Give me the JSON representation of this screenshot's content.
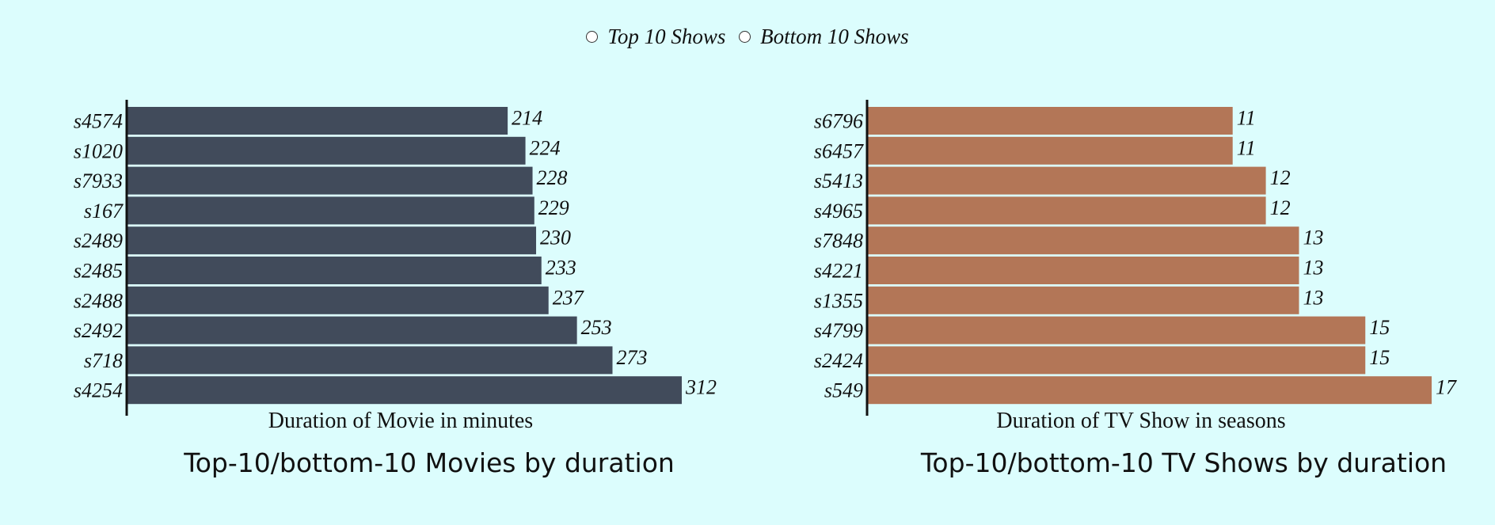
{
  "controls": {
    "top_label": "Top 10 Shows",
    "bottom_label": "Bottom 10 Shows"
  },
  "chart_data": [
    {
      "type": "bar",
      "orientation": "horizontal",
      "title": "Top-10/bottom-10 Movies by duration",
      "xlabel": "Duration of Movie in minutes",
      "ylabel": "",
      "color": "#414b5b",
      "xlim": [
        0,
        312
      ],
      "categories": [
        "s4574",
        "s1020",
        "s7933",
        "s167",
        "s2489",
        "s2485",
        "s2488",
        "s2492",
        "s718",
        "s4254"
      ],
      "values": [
        214,
        224,
        228,
        229,
        230,
        233,
        237,
        253,
        273,
        312
      ]
    },
    {
      "type": "bar",
      "orientation": "horizontal",
      "title": "Top-10/bottom-10 TV Shows by duration",
      "xlabel": "Duration of TV Show in seasons",
      "ylabel": "",
      "color": "#b37657",
      "xlim": [
        0,
        17
      ],
      "categories": [
        "s6796",
        "s6457",
        "s5413",
        "s4965",
        "s7848",
        "s4221",
        "s1355",
        "s4799",
        "s2424",
        "s549"
      ],
      "values": [
        11,
        11,
        12,
        12,
        13,
        13,
        13,
        15,
        15,
        17
      ]
    }
  ]
}
